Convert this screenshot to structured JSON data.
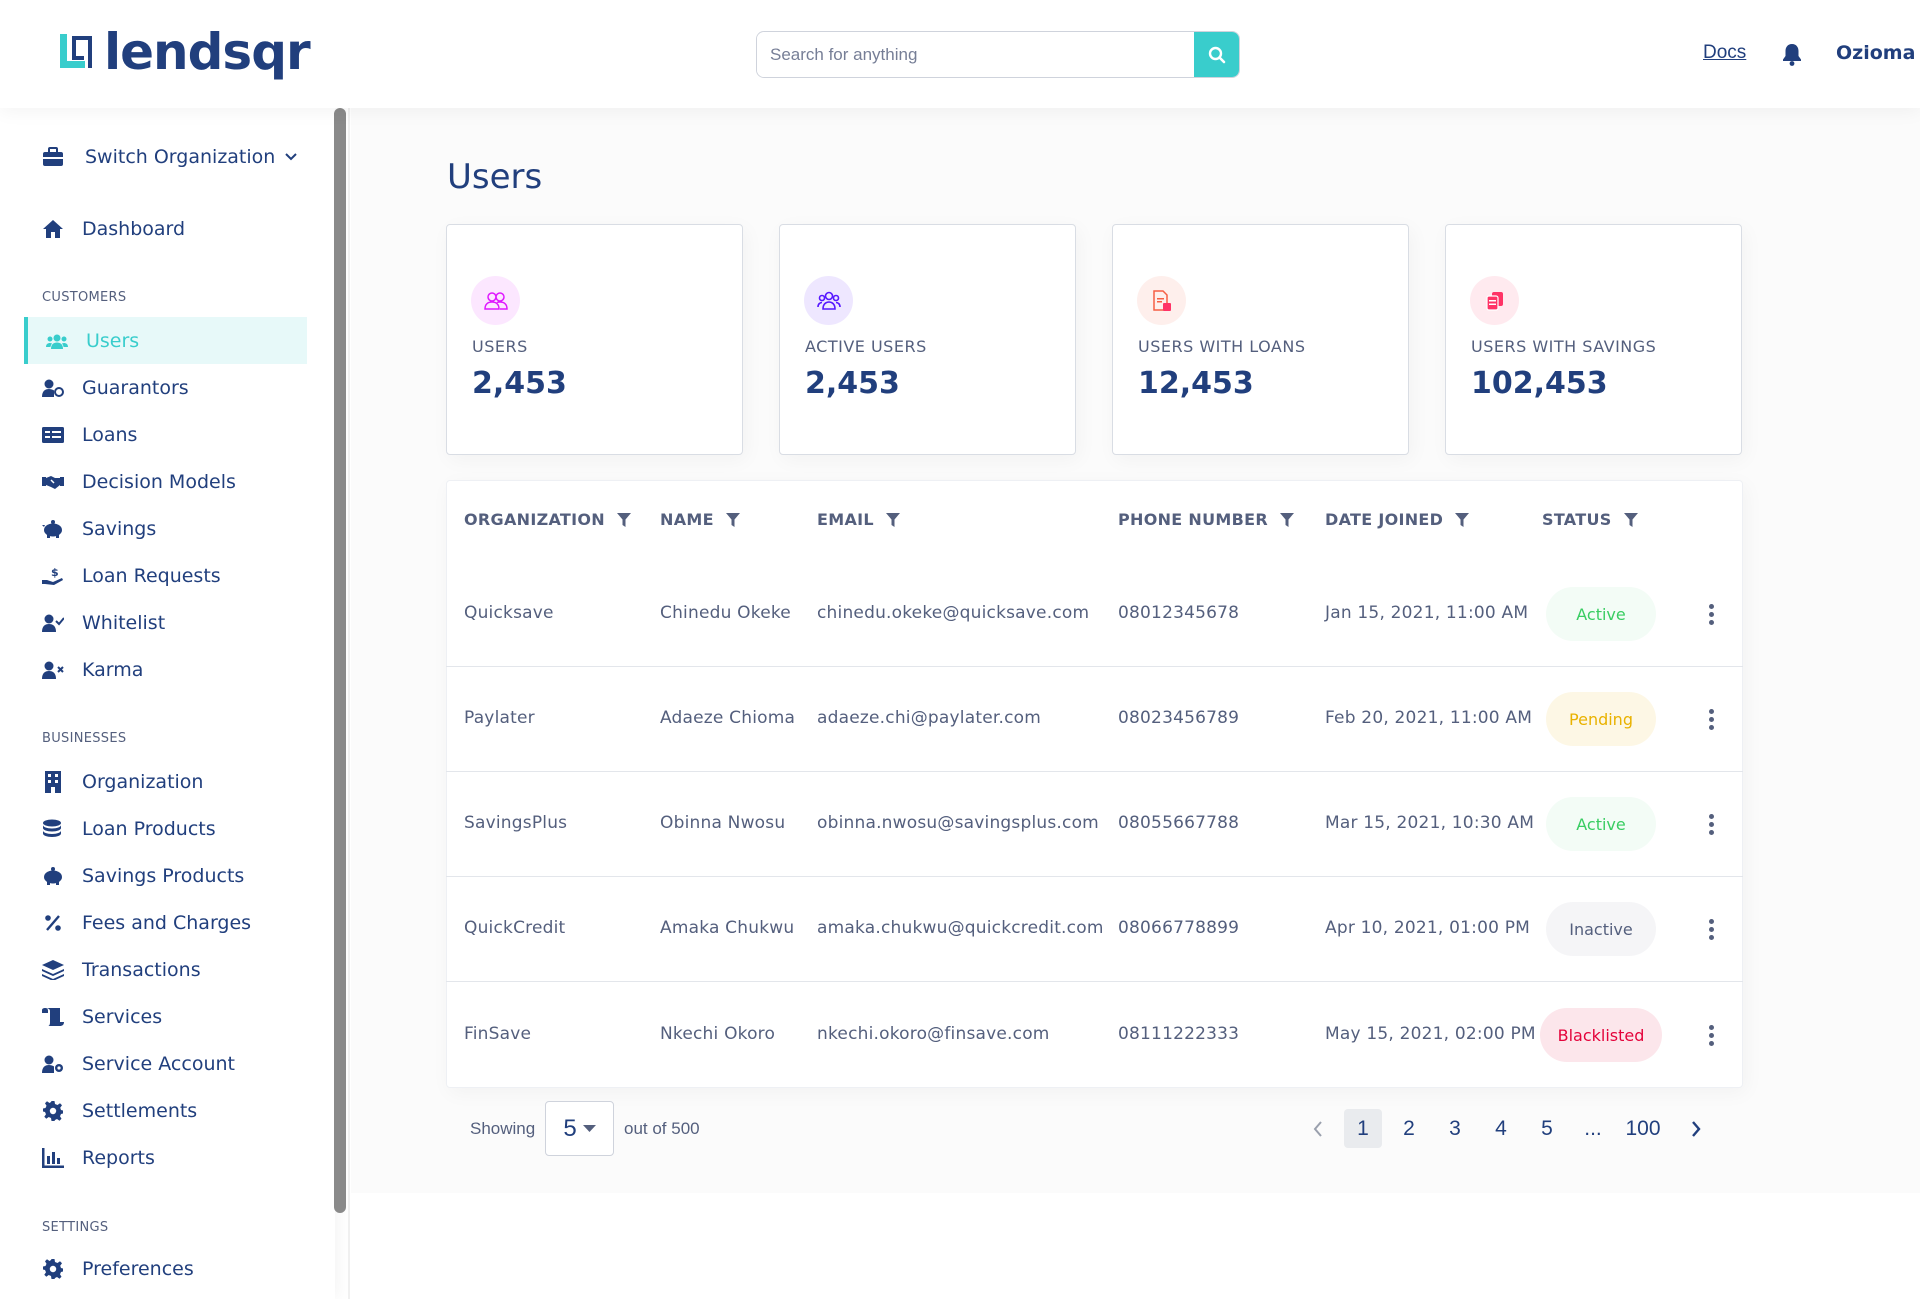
{
  "header": {
    "logo_text": "lendsqr",
    "search_placeholder": "Search for anything",
    "docs_label": "Docs",
    "user_name": "Ozioma"
  },
  "sidebar": {
    "switch_org": "Switch Organization",
    "dashboard": "Dashboard",
    "sections": {
      "customers": "CUSTOMERS",
      "businesses": "BUSINESSES",
      "settings": "SETTINGS"
    },
    "customers": [
      {
        "label": "Users",
        "icon": "users-icon",
        "active": true
      },
      {
        "label": "Guarantors",
        "icon": "guarantors-icon"
      },
      {
        "label": "Loans",
        "icon": "loans-icon"
      },
      {
        "label": "Decision Models",
        "icon": "handshake-icon"
      },
      {
        "label": "Savings",
        "icon": "piggy-bank-icon"
      },
      {
        "label": "Loan Requests",
        "icon": "loan-request-icon"
      },
      {
        "label": "Whitelist",
        "icon": "user-check-icon"
      },
      {
        "label": "Karma",
        "icon": "user-x-icon"
      }
    ],
    "businesses": [
      {
        "label": "Organization",
        "icon": "building-icon"
      },
      {
        "label": "Loan Products",
        "icon": "coins-icon"
      },
      {
        "label": "Savings Products",
        "icon": "piggy-bank-icon"
      },
      {
        "label": "Fees and Charges",
        "icon": "percent-icon"
      },
      {
        "label": "Transactions",
        "icon": "layers-icon"
      },
      {
        "label": "Services",
        "icon": "scroll-icon"
      },
      {
        "label": "Service Account",
        "icon": "user-gear-icon"
      },
      {
        "label": "Settlements",
        "icon": "gear-icon"
      },
      {
        "label": "Reports",
        "icon": "bar-chart-icon"
      }
    ],
    "settings": [
      {
        "label": "Preferences",
        "icon": "gear-icon"
      }
    ]
  },
  "page": {
    "title": "Users"
  },
  "stats": [
    {
      "label": "USERS",
      "value": "2,453",
      "icon": "users-icon",
      "color": "#DF18FF"
    },
    {
      "label": "ACTIVE USERS",
      "value": "2,453",
      "icon": "active-users-icon",
      "color": "#5718FF"
    },
    {
      "label": "USERS WITH LOANS",
      "value": "12,453",
      "icon": "loan-doc-icon",
      "color": "#F55F44"
    },
    {
      "label": "USERS WITH SAVINGS",
      "value": "102,453",
      "icon": "coins-icon",
      "color": "#FF3366"
    }
  ],
  "table": {
    "headers": [
      "ORGANIZATION",
      "NAME",
      "EMAIL",
      "PHONE NUMBER",
      "DATE JOINED",
      "STATUS"
    ],
    "rows": [
      {
        "org": "Quicksave",
        "name": "Chinedu Okeke",
        "email": "chinedu.okeke@quicksave.com",
        "phone": "08012345678",
        "date": "Jan 15, 2021, 11:00 AM",
        "status": "Active"
      },
      {
        "org": "Paylater",
        "name": "Adaeze Chioma",
        "email": "adaeze.chi@paylater.com",
        "phone": "08023456789",
        "date": "Feb 20, 2021, 11:00 AM",
        "status": "Pending"
      },
      {
        "org": "SavingsPlus",
        "name": "Obinna Nwosu",
        "email": "obinna.nwosu@savingsplus.com",
        "phone": "08055667788",
        "date": "Mar 15, 2021, 10:30 AM",
        "status": "Active"
      },
      {
        "org": "QuickCredit",
        "name": "Amaka Chukwu",
        "email": "amaka.chukwu@quickcredit.com",
        "phone": "08066778899",
        "date": "Apr 10, 2021, 01:00 PM",
        "status": "Inactive"
      },
      {
        "org": "FinSave",
        "name": "Nkechi Okoro",
        "email": "nkechi.okoro@finsave.com",
        "phone": "08111222333",
        "date": "May 15, 2021, 02:00 PM",
        "status": "Blacklisted"
      }
    ]
  },
  "status_colors": {
    "Active": {
      "text": "#39CD62",
      "bg": "#f3fcf6"
    },
    "Pending": {
      "text": "#E9B200",
      "bg": "#fdf7e5"
    },
    "Inactive": {
      "text": "#545F7D",
      "bg": "#f5f5f7"
    },
    "Blacklisted": {
      "text": "#E4033B",
      "bg": "#fce6eb"
    }
  },
  "pagination": {
    "showing_label": "Showing",
    "per_page": "5",
    "out_of": "out of 500",
    "pages": [
      "1",
      "2",
      "3",
      "4",
      "5",
      "...",
      "100"
    ],
    "current": "1"
  },
  "colors": {
    "brand": "#213F7D",
    "accent": "#39CDCC"
  }
}
